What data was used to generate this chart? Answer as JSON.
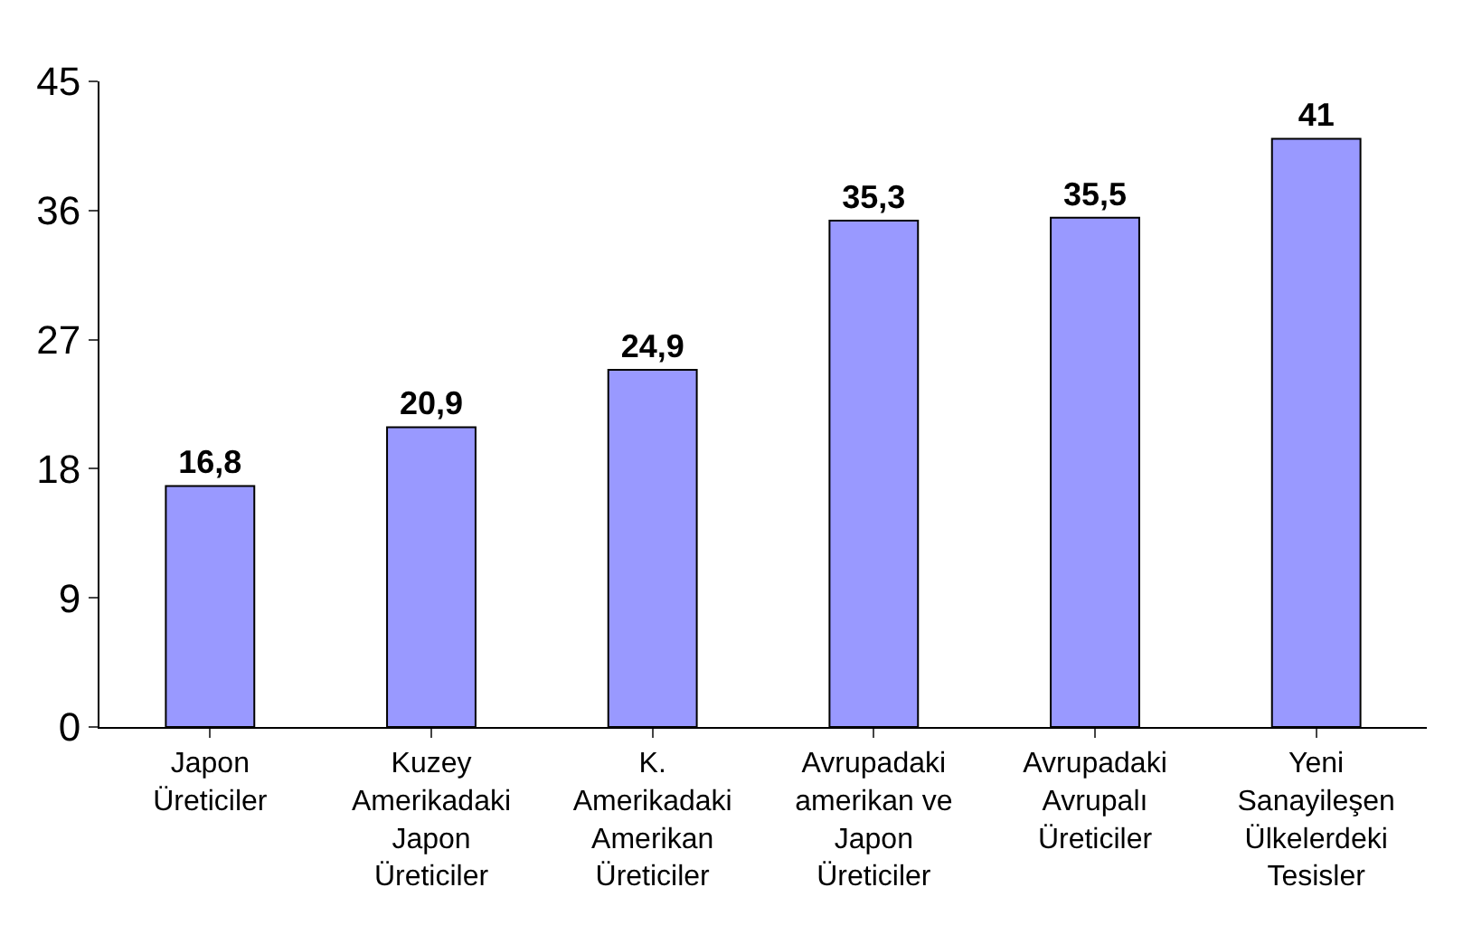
{
  "chart_data": {
    "type": "bar",
    "categories": [
      "Japon Üreticiler",
      "Kuzey Amerikadaki Japon Üreticiler",
      "K. Amerikadaki Amerikan Üreticiler",
      "Avrupadaki amerikan ve Japon Üreticiler",
      "Avrupadaki Avrupalı Üreticiler",
      "Yeni Sanayileşen Ülkelerdeki Tesisler"
    ],
    "values": [
      16.8,
      20.9,
      24.9,
      35.3,
      35.5,
      41
    ],
    "value_labels": [
      "16,8",
      "20,9",
      "24,9",
      "35,3",
      "35,5",
      "41"
    ],
    "color": "#9999ff",
    "ylim": [
      0,
      45
    ],
    "yticks": [
      0,
      9,
      18,
      27,
      36,
      45
    ]
  }
}
